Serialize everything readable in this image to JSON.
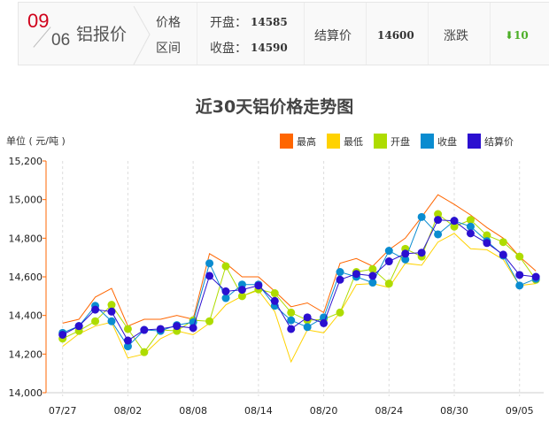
{
  "header": {
    "date_month": "09",
    "date_day": "06",
    "title": "铝报价",
    "range_label_1": "价格",
    "range_label_2": "区间",
    "open_label": "开盘：",
    "open_value": "14585",
    "close_label": "收盘：",
    "close_value": "14590",
    "settle_label": "结算价",
    "settle_value": "14600",
    "change_label": "涨跌",
    "change_value": "10",
    "change_direction": "down",
    "change_color": "#4caf27"
  },
  "chart_data": {
    "type": "line",
    "title": "近30天铝价格走势图",
    "ylabel": "单位 ( 元/吨 )",
    "ylim": [
      14000,
      15200
    ],
    "yticks": [
      "14,000",
      "14,200",
      "14,400",
      "14,600",
      "14,800",
      "15,000",
      "15,200"
    ],
    "xtick_labels": [
      "07/27",
      "08/02",
      "08/08",
      "08/14",
      "08/20",
      "08/24",
      "08/30",
      "09/05"
    ],
    "xtick_every": 4,
    "legend_position": "top-right",
    "grid": "vertical dashed",
    "series": [
      {
        "name": "最高",
        "color": "#ff6600",
        "markers": false,
        "values": [
          14360,
          14380,
          14495,
          14540,
          14345,
          14380,
          14380,
          14400,
          14380,
          14720,
          14670,
          14600,
          14600,
          14525,
          14445,
          14465,
          14415,
          14670,
          14695,
          14655,
          14740,
          14800,
          14910,
          15025,
          14975,
          14920,
          14855,
          14800,
          14705,
          14630
        ]
      },
      {
        "name": "最低",
        "color": "#ffd200",
        "markers": false,
        "values": [
          14240,
          14305,
          14345,
          14365,
          14180,
          14200,
          14280,
          14320,
          14300,
          14360,
          14455,
          14500,
          14530,
          14420,
          14160,
          14325,
          14310,
          14415,
          14560,
          14565,
          14545,
          14670,
          14660,
          14780,
          14825,
          14745,
          14740,
          14690,
          14555,
          14565
        ]
      },
      {
        "name": "开盘",
        "color": "#aedc00",
        "markers": true,
        "values": [
          14280,
          14320,
          14370,
          14455,
          14330,
          14210,
          14325,
          14320,
          14375,
          14370,
          14655,
          14500,
          14535,
          14515,
          14415,
          14375,
          14380,
          14415,
          14625,
          14640,
          14565,
          14745,
          14705,
          14925,
          14860,
          14895,
          14815,
          14780,
          14705,
          14585
        ]
      },
      {
        "name": "收盘",
        "color": "#0a8cd0",
        "markers": true,
        "values": [
          14310,
          14345,
          14450,
          14370,
          14240,
          14325,
          14320,
          14350,
          14365,
          14670,
          14490,
          14560,
          14560,
          14450,
          14375,
          14340,
          14390,
          14625,
          14600,
          14570,
          14735,
          14690,
          14910,
          14820,
          14890,
          14860,
          14785,
          14710,
          14555,
          14590
        ]
      },
      {
        "name": "结算价",
        "color": "#2b0fd0",
        "markers": true,
        "values": [
          14300,
          14345,
          14430,
          14420,
          14270,
          14325,
          14330,
          14345,
          14335,
          14605,
          14525,
          14533,
          14555,
          14475,
          14330,
          14390,
          14360,
          14585,
          14615,
          14605,
          14680,
          14720,
          14725,
          14895,
          14890,
          14825,
          14775,
          14715,
          14610,
          14600
        ]
      }
    ]
  }
}
